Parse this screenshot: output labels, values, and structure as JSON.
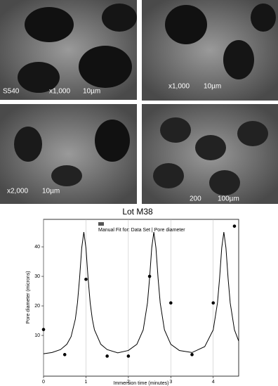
{
  "panels": [
    {
      "labels": [
        "S540",
        "x1,000",
        "10µm"
      ]
    },
    {
      "labels": [
        "x1,000",
        "10µm"
      ]
    },
    {
      "labels": [
        "x2,000",
        "10µm"
      ]
    },
    {
      "labels": [
        "200",
        "100µm"
      ]
    }
  ],
  "chart_data": {
    "type": "line",
    "title": "Lot M38",
    "xlabel": "Immersion time (minutes)",
    "ylabel": "Pore diameter (microns)",
    "xlim": [
      0,
      4.6
    ],
    "ylim": [
      -3.8,
      49.3
    ],
    "xticks": [
      0,
      1,
      2,
      3,
      4
    ],
    "yticks": [
      10,
      20,
      30,
      40
    ],
    "xgrid": true,
    "series": [
      {
        "name": "Manual Fit for: Data Set | Pore diameter",
        "color": "#000000",
        "mode": "line",
        "x": [
          0,
          0.2,
          0.4,
          0.55,
          0.65,
          0.75,
          0.8,
          0.85,
          0.9,
          0.95,
          1.0,
          1.05,
          1.1,
          1.15,
          1.2,
          1.35,
          1.5,
          1.75,
          2.0,
          2.2,
          2.35,
          2.45,
          2.5,
          2.55,
          2.6,
          2.65,
          2.7,
          2.75,
          2.85,
          3.0,
          3.2,
          3.5,
          3.8,
          4.0,
          4.1,
          4.15,
          4.2,
          4.25,
          4.3,
          4.35,
          4.4,
          4.5,
          4.6
        ],
        "values": [
          3.8,
          4.2,
          5.2,
          7.0,
          9.6,
          15.5,
          21.0,
          29.4,
          39.6,
          45,
          39.6,
          29.4,
          21.0,
          15.5,
          11.9,
          7.0,
          5.2,
          4.1,
          4.9,
          7.0,
          11.9,
          21.0,
          29.4,
          39.6,
          45,
          39.6,
          29.4,
          21.0,
          11.9,
          7.0,
          4.9,
          4.2,
          6.2,
          11.9,
          21.0,
          29.4,
          39.6,
          45,
          39.6,
          29.4,
          21.0,
          11.9,
          8.1
        ]
      },
      {
        "color": "#000000",
        "mode": "markers",
        "x": [
          0,
          0.5,
          1,
          1.5,
          2,
          2.5,
          3,
          3.5,
          4,
          4.5
        ],
        "values": [
          12,
          3.5,
          29,
          3,
          3,
          30,
          21,
          3.5,
          21,
          47
        ]
      }
    ]
  }
}
